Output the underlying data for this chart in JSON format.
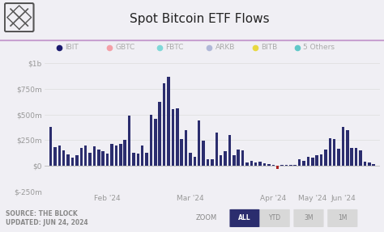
{
  "title": "Spot Bitcoin ETF Flows",
  "background_color": "#f0eff4",
  "bar_color": "#2b2d6e",
  "grid_color": "#dddddd",
  "ylim": [
    -250,
    1050
  ],
  "yticks": [
    -250,
    0,
    250,
    500,
    750,
    1000
  ],
  "ytick_labels": [
    "$-250m",
    "$0",
    "$250m",
    "$500m",
    "$750m",
    "$1b"
  ],
  "xtick_labels": [
    "Feb '24",
    "Mar '24",
    "Apr '24",
    "May '24",
    "Jun '24"
  ],
  "xtick_positions": [
    13,
    32,
    51,
    60,
    67
  ],
  "legend_items": [
    {
      "label": "IBIT",
      "color": "#1a1a6e"
    },
    {
      "label": "GBTC",
      "color": "#f4a0a8"
    },
    {
      "label": "FBTC",
      "color": "#80d8d8"
    },
    {
      "label": "ARKB",
      "color": "#b0b8d8"
    },
    {
      "label": "BITB",
      "color": "#e8d840"
    },
    {
      "label": "5 Others",
      "color": "#60c8c8"
    }
  ],
  "source_text": "SOURCE: THE BLOCK\nUPDATED: JUN 24, 2024",
  "separator_color": "#c8a0d0",
  "values": [
    380,
    185,
    200,
    150,
    110,
    80,
    100,
    170,
    200,
    130,
    190,
    160,
    140,
    115,
    210,
    200,
    210,
    250,
    490,
    130,
    120,
    200,
    130,
    500,
    460,
    620,
    800,
    870,
    550,
    560,
    260,
    350,
    130,
    90,
    440,
    245,
    60,
    60,
    320,
    100,
    145,
    300,
    100,
    160,
    150,
    30,
    50,
    35,
    40,
    25,
    15,
    10,
    -30,
    5,
    8,
    12,
    5,
    65,
    50,
    90,
    80,
    100,
    110,
    155,
    270,
    260,
    165,
    380,
    350,
    175,
    175,
    150,
    40,
    30,
    15
  ],
  "bar_width": 0.65,
  "title_fontsize": 11,
  "tick_fontsize": 6.5,
  "legend_fontsize": 6.5,
  "source_fontsize": 5.5,
  "zoom_labels": [
    "ALL",
    "YTD",
    "3M",
    "1M"
  ],
  "zoom_active": 0
}
